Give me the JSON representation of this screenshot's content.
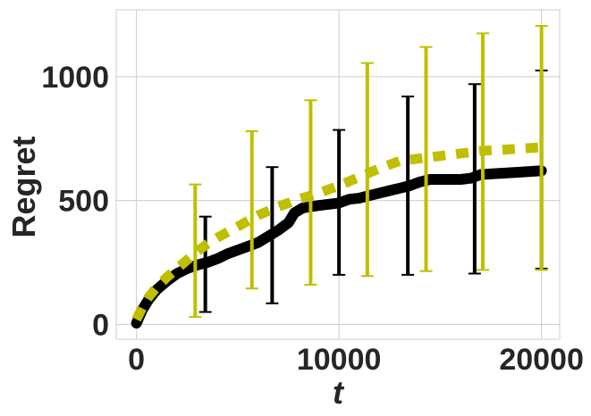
{
  "chart_data": {
    "type": "line",
    "title": "",
    "xlabel": "t",
    "ylabel": "Regret",
    "xlim": [
      -1000,
      20900
    ],
    "ylim": [
      -60,
      1270
    ],
    "xticks": [
      0,
      10000,
      20000
    ],
    "xtick_labels": [
      "0",
      "10000",
      "20000"
    ],
    "yticks": [
      0,
      500,
      1000
    ],
    "ytick_labels": [
      "0",
      "500",
      "1000"
    ],
    "grid": true,
    "legend": "none",
    "colors": {
      "solid": "#000000",
      "dashed": "#bfbf00",
      "grid": "#cccccc",
      "frame": "#cccccc"
    },
    "series": [
      {
        "style": "solid",
        "x": [
          0,
          300,
          600,
          1000,
          1500,
          2000,
          2500,
          3000,
          3500,
          4000,
          4500,
          5000,
          5500,
          6000,
          6500,
          7000,
          7500,
          7800,
          8200,
          9000,
          10000,
          10500,
          11000,
          11500,
          12000,
          12500,
          13000,
          13500,
          14000,
          14500,
          15000,
          16000,
          16500,
          17000,
          18000,
          19000,
          20000
        ],
        "y": [
          5,
          60,
          100,
          140,
          175,
          205,
          225,
          240,
          250,
          265,
          285,
          300,
          315,
          330,
          355,
          380,
          410,
          450,
          470,
          480,
          490,
          505,
          510,
          520,
          530,
          540,
          550,
          560,
          575,
          585,
          585,
          585,
          590,
          605,
          610,
          615,
          620
        ],
        "errorbars": [
          {
            "x": 3400,
            "low": 50,
            "high": 435
          },
          {
            "x": 6700,
            "low": 85,
            "high": 635
          },
          {
            "x": 10000,
            "low": 200,
            "high": 785
          },
          {
            "x": 13400,
            "low": 200,
            "high": 920
          },
          {
            "x": 16700,
            "low": 205,
            "high": 970
          },
          {
            "x": 20000,
            "low": 225,
            "high": 1025
          }
        ]
      },
      {
        "style": "dashed",
        "x": [
          0,
          300,
          600,
          1000,
          1500,
          2000,
          2500,
          3000,
          3500,
          4000,
          5000,
          6000,
          7000,
          8000,
          9000,
          10000,
          11000,
          12000,
          13000,
          14000,
          15000,
          16000,
          17000,
          18000,
          19000,
          20000
        ],
        "y": [
          20,
          70,
          110,
          150,
          190,
          225,
          260,
          295,
          325,
          350,
          395,
          440,
          475,
          505,
          530,
          560,
          595,
          630,
          660,
          670,
          680,
          690,
          700,
          705,
          710,
          715
        ],
        "errorbars": [
          {
            "x": 2900,
            "low": 30,
            "high": 565
          },
          {
            "x": 5700,
            "low": 145,
            "high": 780
          },
          {
            "x": 8600,
            "low": 160,
            "high": 905
          },
          {
            "x": 11400,
            "low": 195,
            "high": 1055
          },
          {
            "x": 14300,
            "low": 215,
            "high": 1120
          },
          {
            "x": 17100,
            "low": 220,
            "high": 1175
          },
          {
            "x": 20000,
            "low": 220,
            "high": 1205
          }
        ]
      }
    ]
  }
}
